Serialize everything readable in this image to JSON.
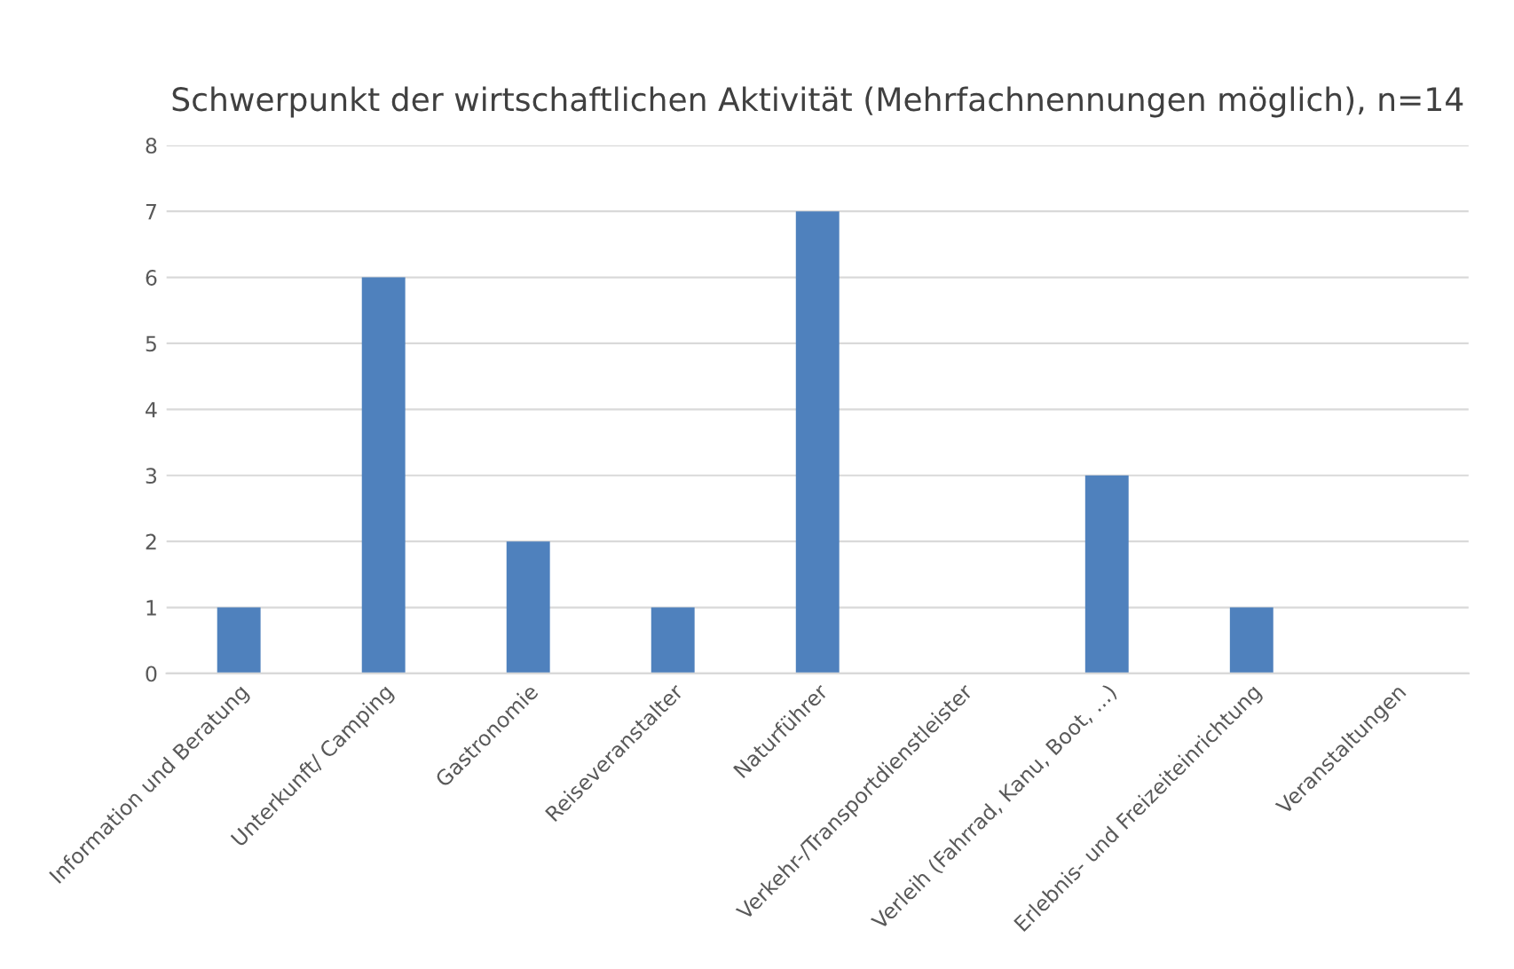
{
  "chart_data": {
    "type": "bar",
    "title": "Schwerpunkt der wirtschaftlichen Aktivität (Mehrfachnennungen möglich), n=14",
    "categories": [
      "Information und Beratung",
      "Unterkunft/ Camping",
      "Gastronomie",
      "Reiseveranstalter",
      "Naturführer",
      "Verkehr-/Transportdienstleister",
      "Verleih (Fahrrad, Kanu, Boot, ...)",
      "Erlebnis- und Freizeiteinrichtung",
      "Veranstaltungen"
    ],
    "values": [
      1,
      6,
      2,
      1,
      7,
      0,
      3,
      1,
      0
    ],
    "color": "#4f81bd",
    "ylim": [
      0,
      8
    ],
    "yticks": [
      0,
      1,
      2,
      3,
      4,
      5,
      6,
      7,
      8
    ],
    "grid": "y"
  }
}
